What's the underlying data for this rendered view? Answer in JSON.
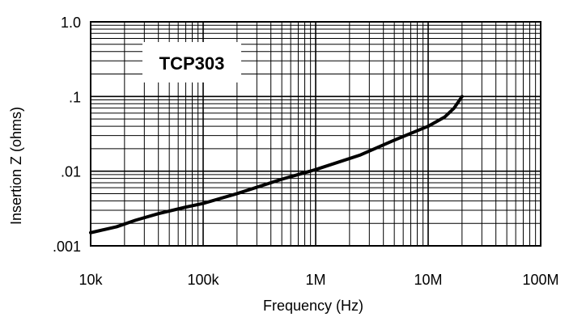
{
  "chart_data": {
    "type": "line",
    "title": "",
    "annotation": "TCP303",
    "xlabel": "Frequency  (Hz)",
    "ylabel": "Insertion Z (ohms)",
    "x_scale": "log",
    "y_scale": "log",
    "xlim": [
      10000,
      100000000
    ],
    "ylim": [
      0.001,
      1.0
    ],
    "x_tick_labels": [
      "10k",
      "100k",
      "1M",
      "10M",
      "100M"
    ],
    "y_tick_labels": [
      ".001",
      ".01",
      ".1",
      "1.0"
    ],
    "grid": true,
    "series": [
      {
        "x": [
          10000,
          17000,
          25000,
          40000,
          70000,
          100000,
          200000,
          500000,
          1000000,
          2500000,
          5000000,
          10000000,
          14000000,
          17000000,
          20000000
        ],
        "y": [
          0.0015,
          0.0018,
          0.0022,
          0.0027,
          0.0033,
          0.0037,
          0.005,
          0.0078,
          0.0105,
          0.0165,
          0.026,
          0.04,
          0.053,
          0.07,
          0.1
        ]
      }
    ]
  }
}
